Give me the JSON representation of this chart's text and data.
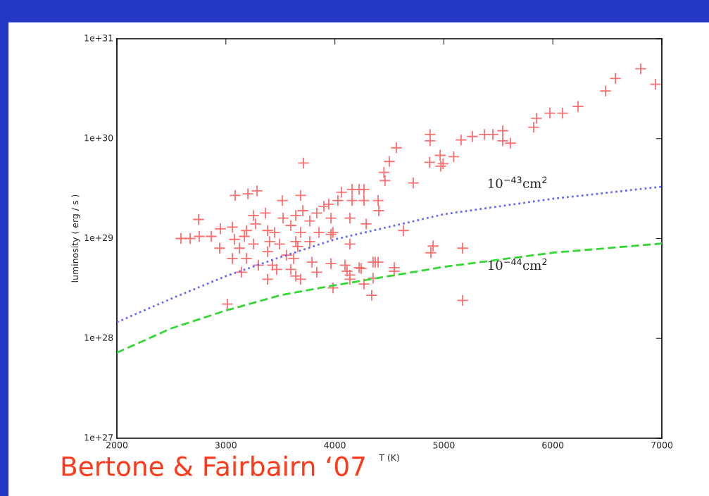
{
  "chart_data": {
    "type": "scatter",
    "xlabel": "T (K)",
    "ylabel": "luminosity ( erg / s )",
    "log": "y",
    "grid": false,
    "legend": false,
    "xlim": [
      2000,
      7000
    ],
    "xticks": [
      2000,
      3000,
      4000,
      5000,
      6000,
      7000
    ],
    "ylim": [
      1e+27,
      1e+31
    ],
    "yticks": [
      {
        "value": 1e+27,
        "label": "1e+27"
      },
      {
        "value": 1e+28,
        "label": "1e+28"
      },
      {
        "value": 1e+29,
        "label": "1e+29"
      },
      {
        "value": 1e+30,
        "label": "1e+30"
      },
      {
        "value": 1e+31,
        "label": "1e+31"
      }
    ],
    "series": [
      {
        "type": "scatter",
        "color": "#ff7070",
        "marker": "cross",
        "x": [
          6806,
          6942,
          6574,
          6483,
          6231,
          6089,
          5973,
          5850,
          5824,
          5540,
          5450,
          5372,
          5262,
          5158,
          5540,
          5611,
          4874,
          4874,
          5090,
          4993,
          4870,
          4966,
          4972,
          4565,
          4500,
          4450,
          4460,
          4720,
          3712,
          3085,
          3202,
          3286,
          3686,
          3518,
          2749,
          2588,
          2672,
          2756,
          2866,
          2950,
          2943,
          3060,
          3170,
          3253,
          3363,
          3525,
          3641,
          3706,
          3770,
          3834,
          3944,
          4028,
          4061,
          4158,
          4222,
          4267,
          4158,
          4267,
          4397,
          4403,
          4138,
          4287,
          3964,
          3983,
          3854,
          3686,
          3596,
          3447,
          3383,
          3273,
          3189,
          3079,
          3124,
          3253,
          3383,
          3492,
          3641,
          3402,
          3770,
          3660,
          3557,
          3060,
          3189,
          3299,
          3428,
          3466,
          3596,
          3622,
          3790,
          3834,
          3143,
          3383,
          3641,
          3686,
          3964,
          4093,
          4138,
          4242,
          4351,
          4397,
          3964,
          3899,
          4138,
          4629,
          4901,
          4881,
          5172,
          5172,
          4338,
          4267,
          4351,
          4545,
          4545,
          4371,
          4222,
          4112,
          3983,
          4138,
          3014
        ],
        "values": [
          5e+30,
          3.5e+30,
          4e+30,
          3e+30,
          2.1e+30,
          1.8e+30,
          1.8e+30,
          1.6e+30,
          1.3e+30,
          1.2e+30,
          1.1e+30,
          1.1e+30,
          1.05e+30,
          9.7e+29,
          9.5e+29,
          9e+29,
          1.1e+30,
          9.5e+29,
          6.6e+29,
          5.6e+29,
          5.8e+29,
          6.8e+29,
          5.3e+29,
          8.1e+29,
          5.9e+29,
          4.6e+29,
          3.8e+29,
          3.6e+29,
          5.7e+29,
          2.7e+29,
          2.8e+29,
          3e+29,
          2.7e+29,
          2.4e+29,
          1.55e+29,
          1e+29,
          1e+29,
          1.05e+29,
          1.05e+29,
          1.25e+29,
          8e+28,
          1.3e+29,
          1.05e+29,
          1.7e+29,
          1.8e+29,
          1.6e+29,
          1.7e+29,
          1.9e+29,
          1.5e+29,
          1.8e+29,
          2.2e+29,
          2.4e+29,
          2.9e+29,
          3.1e+29,
          3.1e+29,
          3.1e+29,
          2.4e+29,
          2.4e+29,
          2.4e+29,
          1.9e+29,
          1.6e+29,
          1.4e+29,
          1.6e+29,
          1.15e+29,
          1.15e+29,
          1.15e+29,
          1.35e+29,
          1.15e+29,
          1.2e+29,
          1.4e+29,
          1.2e+29,
          9.8e+28,
          8e+28,
          8.8e+28,
          7.4e+28,
          8.8e+28,
          9.3e+28,
          9.3e+28,
          9.3e+28,
          8.3e+28,
          6.8e+28,
          6.3e+28,
          6.3e+28,
          5.4e+28,
          5.4e+28,
          4.9e+28,
          4.9e+28,
          6.3e+28,
          5.8e+28,
          4.6e+28,
          4.6e+28,
          3.9e+28,
          4.2e+28,
          3.9e+28,
          5.6e+28,
          5.4e+28,
          4.3e+28,
          5e+28,
          5.8e+28,
          5.8e+28,
          1.1e+29,
          2.1e+29,
          8.8e+28,
          1.2e+29,
          8.4e+28,
          7.2e+28,
          8e+28,
          2.4e+28,
          2.7e+28,
          3.5e+28,
          4e+28,
          5.1e+28,
          4.7e+28,
          5.8e+28,
          5.1e+28,
          4.7e+28,
          3.2e+28,
          3.9e+28,
          2.2e+28
        ]
      },
      {
        "type": "line",
        "color": "#6a6af8",
        "line_style": "dotted",
        "x": [
          2000,
          2500,
          3000,
          3500,
          4000,
          5000,
          6000,
          7000
        ],
        "values": [
          1.45e+28,
          2.5e+28,
          4.2e+28,
          6.5e+28,
          9.8e+28,
          1.75e+29,
          2.5e+29,
          3.3e+29
        ]
      },
      {
        "type": "line",
        "color": "#33d833",
        "line_style": "dashed",
        "x": [
          2000,
          2500,
          3000,
          3500,
          4000,
          5000,
          6000,
          7000
        ],
        "values": [
          7.2e+27,
          1.26e+28,
          1.9e+28,
          2.7e+28,
          3.4e+28,
          5.2e+28,
          7.2e+28,
          8.9e+28
        ]
      }
    ],
    "annotations": [
      "10$^{−43}$cm$^{2}$",
      "10$^{−44}$cm$^{2}$",
      "Bertone & Fairbairn ‘07"
    ]
  }
}
